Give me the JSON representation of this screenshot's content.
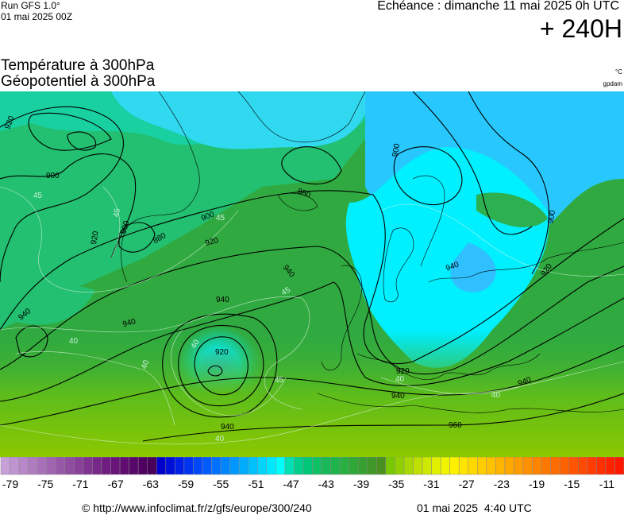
{
  "header": {
    "run": "Run GFS 1.0°",
    "date": "01 mai 2025 00Z",
    "echeance": "Echéance : dimanche 11 mai 2025 0h UTC",
    "horizon": "+ 240H",
    "title1": "Température à 300hPa",
    "title2": "Géopotentiel à 300hPa",
    "unit1": "°C",
    "unit2": "gpdam"
  },
  "map": {
    "contour_labels": [
      "920",
      "900",
      "900",
      "920",
      "880",
      "940",
      "940",
      "940",
      "920",
      "940",
      "880",
      "900",
      "920",
      "940",
      "940",
      "920",
      "940",
      "960",
      "940",
      "920",
      "900",
      "900"
    ],
    "isotherm_labels": [
      "45",
      "45",
      "45",
      "45",
      "45",
      "40",
      "40",
      "40",
      "40",
      "40",
      "40"
    ]
  },
  "scale": {
    "labels": [
      -79,
      -75,
      -71,
      -67,
      -63,
      -59,
      -55,
      -51,
      -47,
      -43,
      -39,
      -35,
      -31,
      -27,
      -23,
      -19,
      -15,
      -11
    ],
    "colors": [
      "#c8a0d8",
      "#c094d0",
      "#b888c8",
      "#b07cc0",
      "#a870b8",
      "#a064b0",
      "#9858a8",
      "#904ca0",
      "#884098",
      "#803490",
      "#782888",
      "#701c80",
      "#681478",
      "#600c70",
      "#580868",
      "#500060",
      "#480058",
      "#0000c8",
      "#0010d8",
      "#0020e8",
      "#0034f0",
      "#0048f8",
      "#005cff",
      "#0070ff",
      "#0084ff",
      "#0098ff",
      "#00acff",
      "#00c0ff",
      "#00d4ff",
      "#00e8ff",
      "#00ffff",
      "#00e0b4",
      "#00d08c",
      "#00c878",
      "#10c064",
      "#18b858",
      "#20b44c",
      "#28b040",
      "#30a838",
      "#38a030",
      "#409828",
      "#489020",
      "#78c800",
      "#90d000",
      "#a8d800",
      "#c0e000",
      "#d0e800",
      "#e0f000",
      "#f0f400",
      "#fff000",
      "#ffe400",
      "#ffd800",
      "#ffcc00",
      "#ffc000",
      "#ffb400",
      "#ffa800",
      "#ff9c00",
      "#ff9000",
      "#ff8400",
      "#ff7800",
      "#ff6c00",
      "#ff6000",
      "#ff5400",
      "#ff4800",
      "#ff3c00",
      "#ff3000",
      "#ff2400",
      "#ff1800"
    ]
  },
  "footer": {
    "source": "© http://www.infoclimat.fr/z/gfs/europe/300/240",
    "generated": "01 mai 2025  4:40 UTC"
  }
}
